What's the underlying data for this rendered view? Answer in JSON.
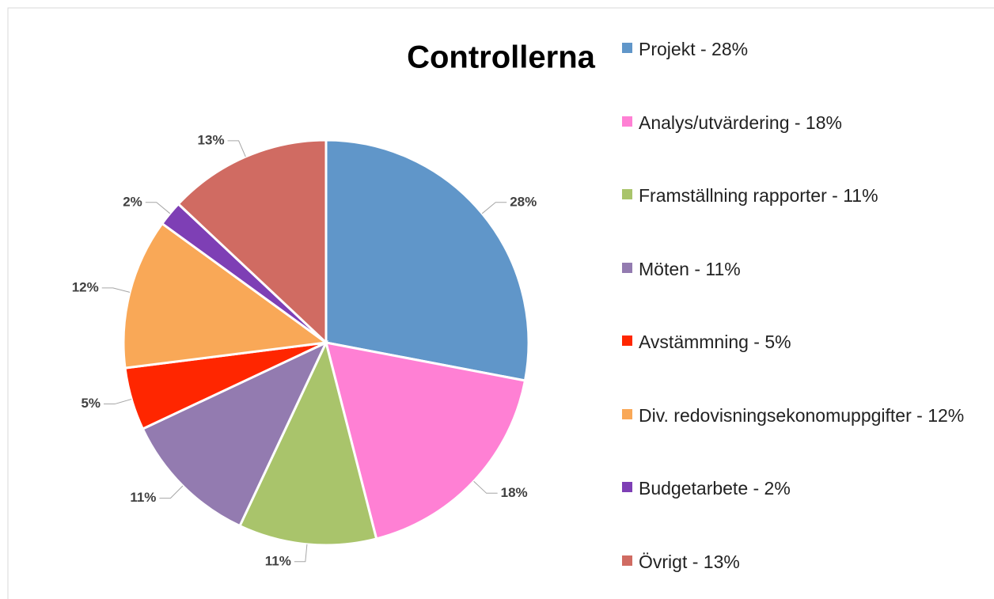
{
  "chart_data": {
    "type": "pie",
    "title": "Controllerna",
    "categories": [
      "Projekt - 28%",
      "Analys/utvärdering - 18%",
      "Framställning rapporter - 11%",
      "Möten - 11%",
      "Avstämmning - 5%",
      "Div. redovisningsekonomuppgifter - 12%",
      "Budgetarbete - 2%",
      "Övrigt - 13%"
    ],
    "values": [
      28,
      18,
      11,
      11,
      5,
      12,
      2,
      13
    ],
    "value_labels": [
      "28%",
      "18%",
      "11%",
      "11%",
      "5%",
      "12%",
      "2%",
      "13%"
    ],
    "colors": [
      "#6096c9",
      "#ff80d4",
      "#a9c46b",
      "#937bb0",
      "#ff2600",
      "#f9a857",
      "#7e3fb5",
      "#d06b62"
    ],
    "legend": "right"
  }
}
